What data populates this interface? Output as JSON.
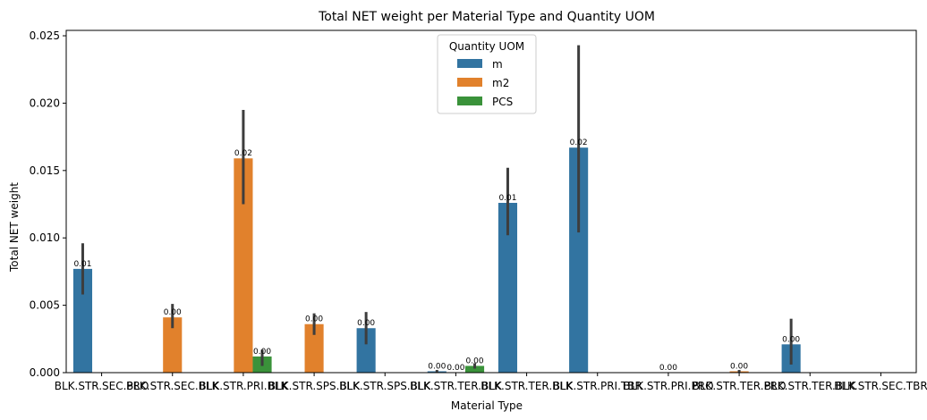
{
  "chart_data": {
    "type": "bar",
    "title": "Total NET weight per Material Type and Quantity UOM",
    "xlabel": "Material Type",
    "ylabel": "Total NET weight",
    "ylim": [
      0,
      0.0254
    ],
    "yticks": [
      "0.000",
      "0.005",
      "0.010",
      "0.015",
      "0.020",
      "0.025"
    ],
    "ytick_values": [
      0,
      0.005,
      0.01,
      0.015,
      0.02,
      0.025
    ],
    "categories": [
      "BLK.STR.SEC.PRO",
      "BLK.STR.SEC.BLK",
      "BLK.STR.PRI.BLK",
      "BLK.STR.SPS.BLK",
      "BLK.STR.SPS.BLK",
      "BLK.STR.TER.BLK",
      "BLK.STR.TER.BLK",
      "BLK.STR.PRI.TBR",
      "BLK.STR.PRI.PRO",
      "BLK.STR.TER.PRO",
      "BLK.STR.TER.BLK",
      "BLK.STR.SEC.TBR"
    ],
    "legend_title": "Quantity UOM",
    "legend_position": "upper-center",
    "series": [
      {
        "name": "m",
        "color": "#3274a1",
        "values": [
          0.0077,
          null,
          null,
          null,
          0.0033,
          0.0001,
          0.0126,
          0.0167,
          null,
          null,
          0.0021,
          null
        ],
        "ci_low": [
          0.0058,
          null,
          null,
          null,
          0.0021,
          0.0,
          0.0102,
          0.0104,
          null,
          null,
          0.0006,
          null
        ],
        "ci_high": [
          0.0096,
          null,
          null,
          null,
          0.0045,
          0.0002,
          0.0152,
          0.0243,
          null,
          null,
          0.004,
          null
        ],
        "labels": [
          "0.01",
          "",
          "",
          "",
          "0.00",
          "0.00",
          "0.01",
          "0.02",
          "",
          "",
          "0.00",
          ""
        ]
      },
      {
        "name": "m2",
        "color": "#e1812c",
        "values": [
          null,
          0.0041,
          0.0159,
          0.0036,
          null,
          null,
          null,
          null,
          0.0,
          0.0001,
          null,
          null
        ],
        "ci_low": [
          null,
          0.0033,
          0.0125,
          0.0028,
          null,
          null,
          null,
          null,
          0.0,
          0.0,
          null,
          null
        ],
        "ci_high": [
          null,
          0.0051,
          0.0195,
          0.0044,
          null,
          null,
          null,
          null,
          0.0,
          0.0002,
          null,
          null
        ],
        "labels": [
          "",
          "0.00",
          "0.02",
          "0.00",
          "",
          "",
          "",
          "",
          "0.00",
          "0.00",
          "",
          ""
        ]
      },
      {
        "name": "PCS",
        "color": "#3a923a",
        "values": [
          null,
          null,
          0.0012,
          null,
          null,
          0.0005,
          null,
          null,
          null,
          null,
          null,
          null
        ],
        "ci_low": [
          null,
          null,
          0.0005,
          null,
          null,
          0.0003,
          null,
          null,
          null,
          null,
          null,
          null
        ],
        "ci_high": [
          null,
          null,
          0.0017,
          null,
          null,
          0.0007,
          null,
          null,
          null,
          null,
          null,
          null
        ],
        "labels": [
          "",
          "",
          "0.00",
          "",
          "",
          "0.00",
          "",
          "",
          "",
          "",
          "",
          ""
        ]
      }
    ],
    "extra_labels": [
      {
        "category_index": 5,
        "series_index": 1,
        "text": "0.00"
      }
    ]
  }
}
